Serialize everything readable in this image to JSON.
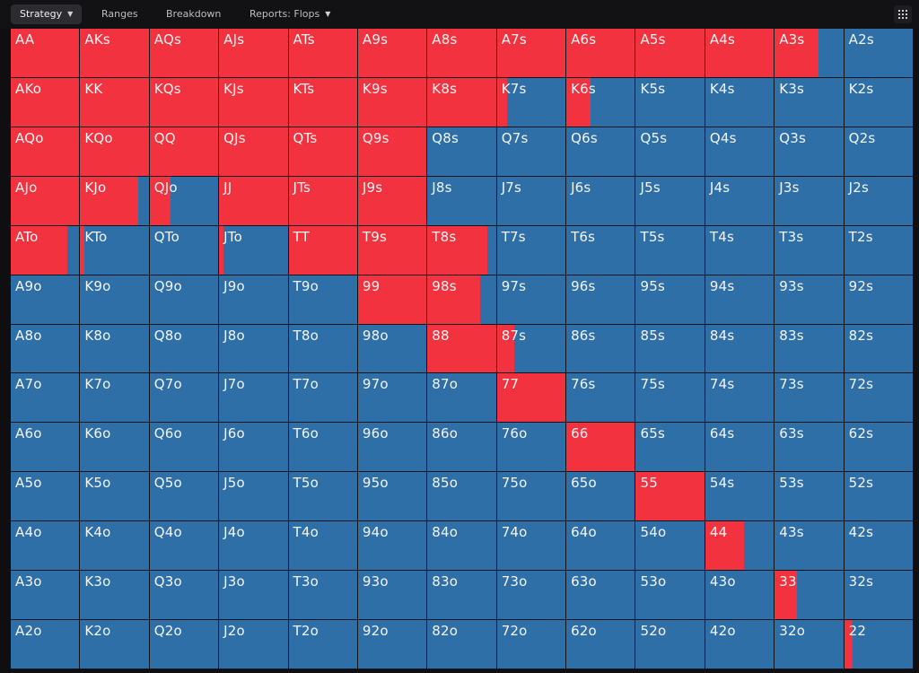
{
  "tabs": [
    {
      "label": "Strategy",
      "has_caret": true,
      "active": true
    },
    {
      "label": "Ranges",
      "has_caret": false,
      "active": false
    },
    {
      "label": "Breakdown",
      "has_caret": false,
      "active": false
    },
    {
      "label": "Reports: Flops",
      "has_caret": true,
      "active": false
    }
  ],
  "grid_menu_icon": "grid-icon",
  "colors": {
    "raise": "#f2323f",
    "fold": "#2f6fa7"
  },
  "matrix": {
    "rows": [
      [
        [
          "AA",
          1
        ],
        [
          "AKs",
          1
        ],
        [
          "AQs",
          1
        ],
        [
          "AJs",
          1
        ],
        [
          "ATs",
          1
        ],
        [
          "A9s",
          1
        ],
        [
          "A8s",
          1
        ],
        [
          "A7s",
          1
        ],
        [
          "A6s",
          1
        ],
        [
          "A5s",
          1
        ],
        [
          "A4s",
          1
        ],
        [
          "A3s",
          0.64
        ],
        [
          "A2s",
          0
        ]
      ],
      [
        [
          "AKo",
          1
        ],
        [
          "KK",
          1
        ],
        [
          "KQs",
          1
        ],
        [
          "KJs",
          1
        ],
        [
          "KTs",
          1
        ],
        [
          "K9s",
          1
        ],
        [
          "K8s",
          1
        ],
        [
          "K7s",
          0.15
        ],
        [
          "K6s",
          0.35
        ],
        [
          "K5s",
          0
        ],
        [
          "K4s",
          0
        ],
        [
          "K3s",
          0
        ],
        [
          "K2s",
          0
        ]
      ],
      [
        [
          "AQo",
          1
        ],
        [
          "KQo",
          1
        ],
        [
          "QQ",
          1
        ],
        [
          "QJs",
          1
        ],
        [
          "QTs",
          1
        ],
        [
          "Q9s",
          1
        ],
        [
          "Q8s",
          0
        ],
        [
          "Q7s",
          0
        ],
        [
          "Q6s",
          0
        ],
        [
          "Q5s",
          0
        ],
        [
          "Q4s",
          0
        ],
        [
          "Q3s",
          0
        ],
        [
          "Q2s",
          0
        ]
      ],
      [
        [
          "AJo",
          1
        ],
        [
          "KJo",
          0.85
        ],
        [
          "QJo",
          0.3
        ],
        [
          "JJ",
          1
        ],
        [
          "JTs",
          1
        ],
        [
          "J9s",
          1
        ],
        [
          "J8s",
          0
        ],
        [
          "J7s",
          0
        ],
        [
          "J6s",
          0
        ],
        [
          "J5s",
          0
        ],
        [
          "J4s",
          0
        ],
        [
          "J3s",
          0
        ],
        [
          "J2s",
          0
        ]
      ],
      [
        [
          "ATo",
          0.82
        ],
        [
          "KTo",
          0.06
        ],
        [
          "QTo",
          0
        ],
        [
          "JTo",
          0.06
        ],
        [
          "TT",
          1
        ],
        [
          "T9s",
          1
        ],
        [
          "T8s",
          0.87
        ],
        [
          "T7s",
          0
        ],
        [
          "T6s",
          0
        ],
        [
          "T5s",
          0
        ],
        [
          "T4s",
          0
        ],
        [
          "T3s",
          0
        ],
        [
          "T2s",
          0
        ]
      ],
      [
        [
          "A9o",
          0
        ],
        [
          "K9o",
          0
        ],
        [
          "Q9o",
          0
        ],
        [
          "J9o",
          0
        ],
        [
          "T9o",
          0
        ],
        [
          "99",
          1
        ],
        [
          "98s",
          0.77
        ],
        [
          "97s",
          0
        ],
        [
          "96s",
          0
        ],
        [
          "95s",
          0
        ],
        [
          "94s",
          0
        ],
        [
          "93s",
          0
        ],
        [
          "92s",
          0
        ]
      ],
      [
        [
          "A8o",
          0
        ],
        [
          "K8o",
          0
        ],
        [
          "Q8o",
          0
        ],
        [
          "J8o",
          0
        ],
        [
          "T8o",
          0
        ],
        [
          "98o",
          0
        ],
        [
          "88",
          1
        ],
        [
          "87s",
          0.25
        ],
        [
          "86s",
          0
        ],
        [
          "85s",
          0
        ],
        [
          "84s",
          0
        ],
        [
          "83s",
          0
        ],
        [
          "82s",
          0
        ]
      ],
      [
        [
          "A7o",
          0
        ],
        [
          "K7o",
          0
        ],
        [
          "Q7o",
          0
        ],
        [
          "J7o",
          0
        ],
        [
          "T7o",
          0
        ],
        [
          "97o",
          0
        ],
        [
          "87o",
          0
        ],
        [
          "77",
          1
        ],
        [
          "76s",
          0
        ],
        [
          "75s",
          0
        ],
        [
          "74s",
          0
        ],
        [
          "73s",
          0
        ],
        [
          "72s",
          0
        ]
      ],
      [
        [
          "A6o",
          0
        ],
        [
          "K6o",
          0
        ],
        [
          "Q6o",
          0
        ],
        [
          "J6o",
          0
        ],
        [
          "T6o",
          0
        ],
        [
          "96o",
          0
        ],
        [
          "86o",
          0
        ],
        [
          "76o",
          0
        ],
        [
          "66",
          1
        ],
        [
          "65s",
          0
        ],
        [
          "64s",
          0
        ],
        [
          "63s",
          0
        ],
        [
          "62s",
          0
        ]
      ],
      [
        [
          "A5o",
          0
        ],
        [
          "K5o",
          0
        ],
        [
          "Q5o",
          0
        ],
        [
          "J5o",
          0
        ],
        [
          "T5o",
          0
        ],
        [
          "95o",
          0
        ],
        [
          "85o",
          0
        ],
        [
          "75o",
          0
        ],
        [
          "65o",
          0
        ],
        [
          "55",
          1
        ],
        [
          "54s",
          0
        ],
        [
          "53s",
          0
        ],
        [
          "52s",
          0
        ]
      ],
      [
        [
          "A4o",
          0
        ],
        [
          "K4o",
          0
        ],
        [
          "Q4o",
          0
        ],
        [
          "J4o",
          0
        ],
        [
          "T4o",
          0
        ],
        [
          "94o",
          0
        ],
        [
          "84o",
          0
        ],
        [
          "74o",
          0
        ],
        [
          "64o",
          0
        ],
        [
          "54o",
          0
        ],
        [
          "44",
          0.57
        ],
        [
          "43s",
          0
        ],
        [
          "42s",
          0
        ]
      ],
      [
        [
          "A3o",
          0
        ],
        [
          "K3o",
          0
        ],
        [
          "Q3o",
          0
        ],
        [
          "J3o",
          0
        ],
        [
          "T3o",
          0
        ],
        [
          "93o",
          0
        ],
        [
          "83o",
          0
        ],
        [
          "73o",
          0
        ],
        [
          "63o",
          0
        ],
        [
          "53o",
          0
        ],
        [
          "43o",
          0
        ],
        [
          "33",
          0.33
        ],
        [
          "32s",
          0
        ]
      ],
      [
        [
          "A2o",
          0
        ],
        [
          "K2o",
          0
        ],
        [
          "Q2o",
          0
        ],
        [
          "J2o",
          0
        ],
        [
          "T2o",
          0
        ],
        [
          "92o",
          0
        ],
        [
          "82o",
          0
        ],
        [
          "72o",
          0
        ],
        [
          "62o",
          0
        ],
        [
          "52o",
          0
        ],
        [
          "42o",
          0
        ],
        [
          "32o",
          0
        ],
        [
          "22",
          0.12
        ]
      ]
    ]
  }
}
